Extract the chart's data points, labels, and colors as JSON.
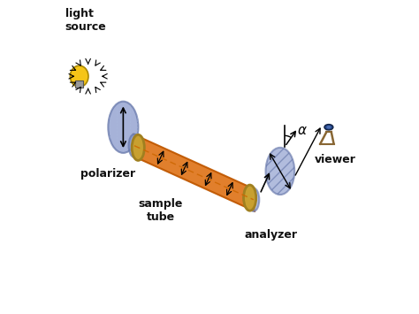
{
  "labels": {
    "light_source": "light\nsource",
    "polarizer": "polarizer",
    "sample_tube": "sample\ntube",
    "analyzer": "analyzer",
    "viewer": "viewer",
    "alpha": "α"
  },
  "colors": {
    "bg_color": "#ffffff",
    "bulb_body": "#f5c518",
    "bulb_base": "#888888",
    "polarizer_fill": "#8899cc",
    "polarizer_edge": "#6677aa",
    "tube_fill": "#e07820",
    "tube_edge": "#c05800",
    "tube_ring": "#c8a030",
    "tube_ring_edge": "#a08020",
    "analyzer_fill": "#8899cc",
    "analyzer_edge": "#6677aa",
    "arrow_color": "#111111",
    "label_color": "#111111",
    "dashed_line": "#cc6600"
  }
}
